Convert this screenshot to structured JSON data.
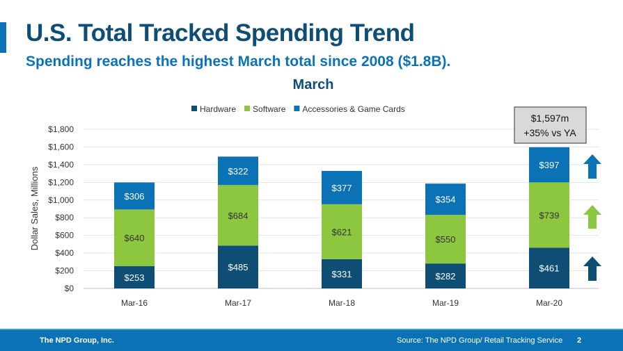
{
  "title": "U.S. Total Tracked Spending Trend",
  "subtitle": "Spending reaches the highest March total since 2008 ($1.8B).",
  "footer": {
    "company": "The NPD Group, Inc.",
    "source": "Source: The NPD Group/ Retail Tracking Service",
    "page": "2"
  },
  "chart_data": {
    "type": "bar",
    "stacked": true,
    "title": "March",
    "ylabel": "Dollar Sales, Millions",
    "xlabel": "",
    "ylim": [
      0,
      1800
    ],
    "yticks": [
      0,
      200,
      400,
      600,
      800,
      1000,
      1200,
      1400,
      1600,
      1800
    ],
    "ytick_labels": [
      "$0",
      "$200",
      "$400",
      "$600",
      "$800",
      "$1,000",
      "$1,200",
      "$1,400",
      "$1,600",
      "$1,800"
    ],
    "grid": true,
    "legend": "top",
    "categories": [
      "Mar-16",
      "Mar-17",
      "Mar-18",
      "Mar-19",
      "Mar-20"
    ],
    "series": [
      {
        "name": "Hardware",
        "color": "#0e4e75",
        "values": [
          253,
          485,
          331,
          282,
          461
        ],
        "labels": [
          "$253",
          "$485",
          "$331",
          "$282",
          "$461"
        ]
      },
      {
        "name": "Software",
        "color": "#8dc63f",
        "values": [
          640,
          684,
          621,
          550,
          739
        ],
        "labels": [
          "$640",
          "$684",
          "$621",
          "$550",
          "$739"
        ]
      },
      {
        "name": "Accessories & Game Cards",
        "color": "#0b72b5",
        "values": [
          306,
          322,
          377,
          354,
          397
        ],
        "labels": [
          "$306",
          "$322",
          "$377",
          "$354",
          "$397"
        ]
      }
    ],
    "annotation": {
      "lines": [
        "$1,597m",
        "+35% vs YA"
      ]
    },
    "trend_arrows": [
      {
        "series": "Accessories & Game Cards",
        "direction": "up",
        "color": "#0b72b5"
      },
      {
        "series": "Software",
        "direction": "up",
        "color": "#8dc63f"
      },
      {
        "series": "Hardware",
        "direction": "up",
        "color": "#0e4e75"
      }
    ]
  }
}
